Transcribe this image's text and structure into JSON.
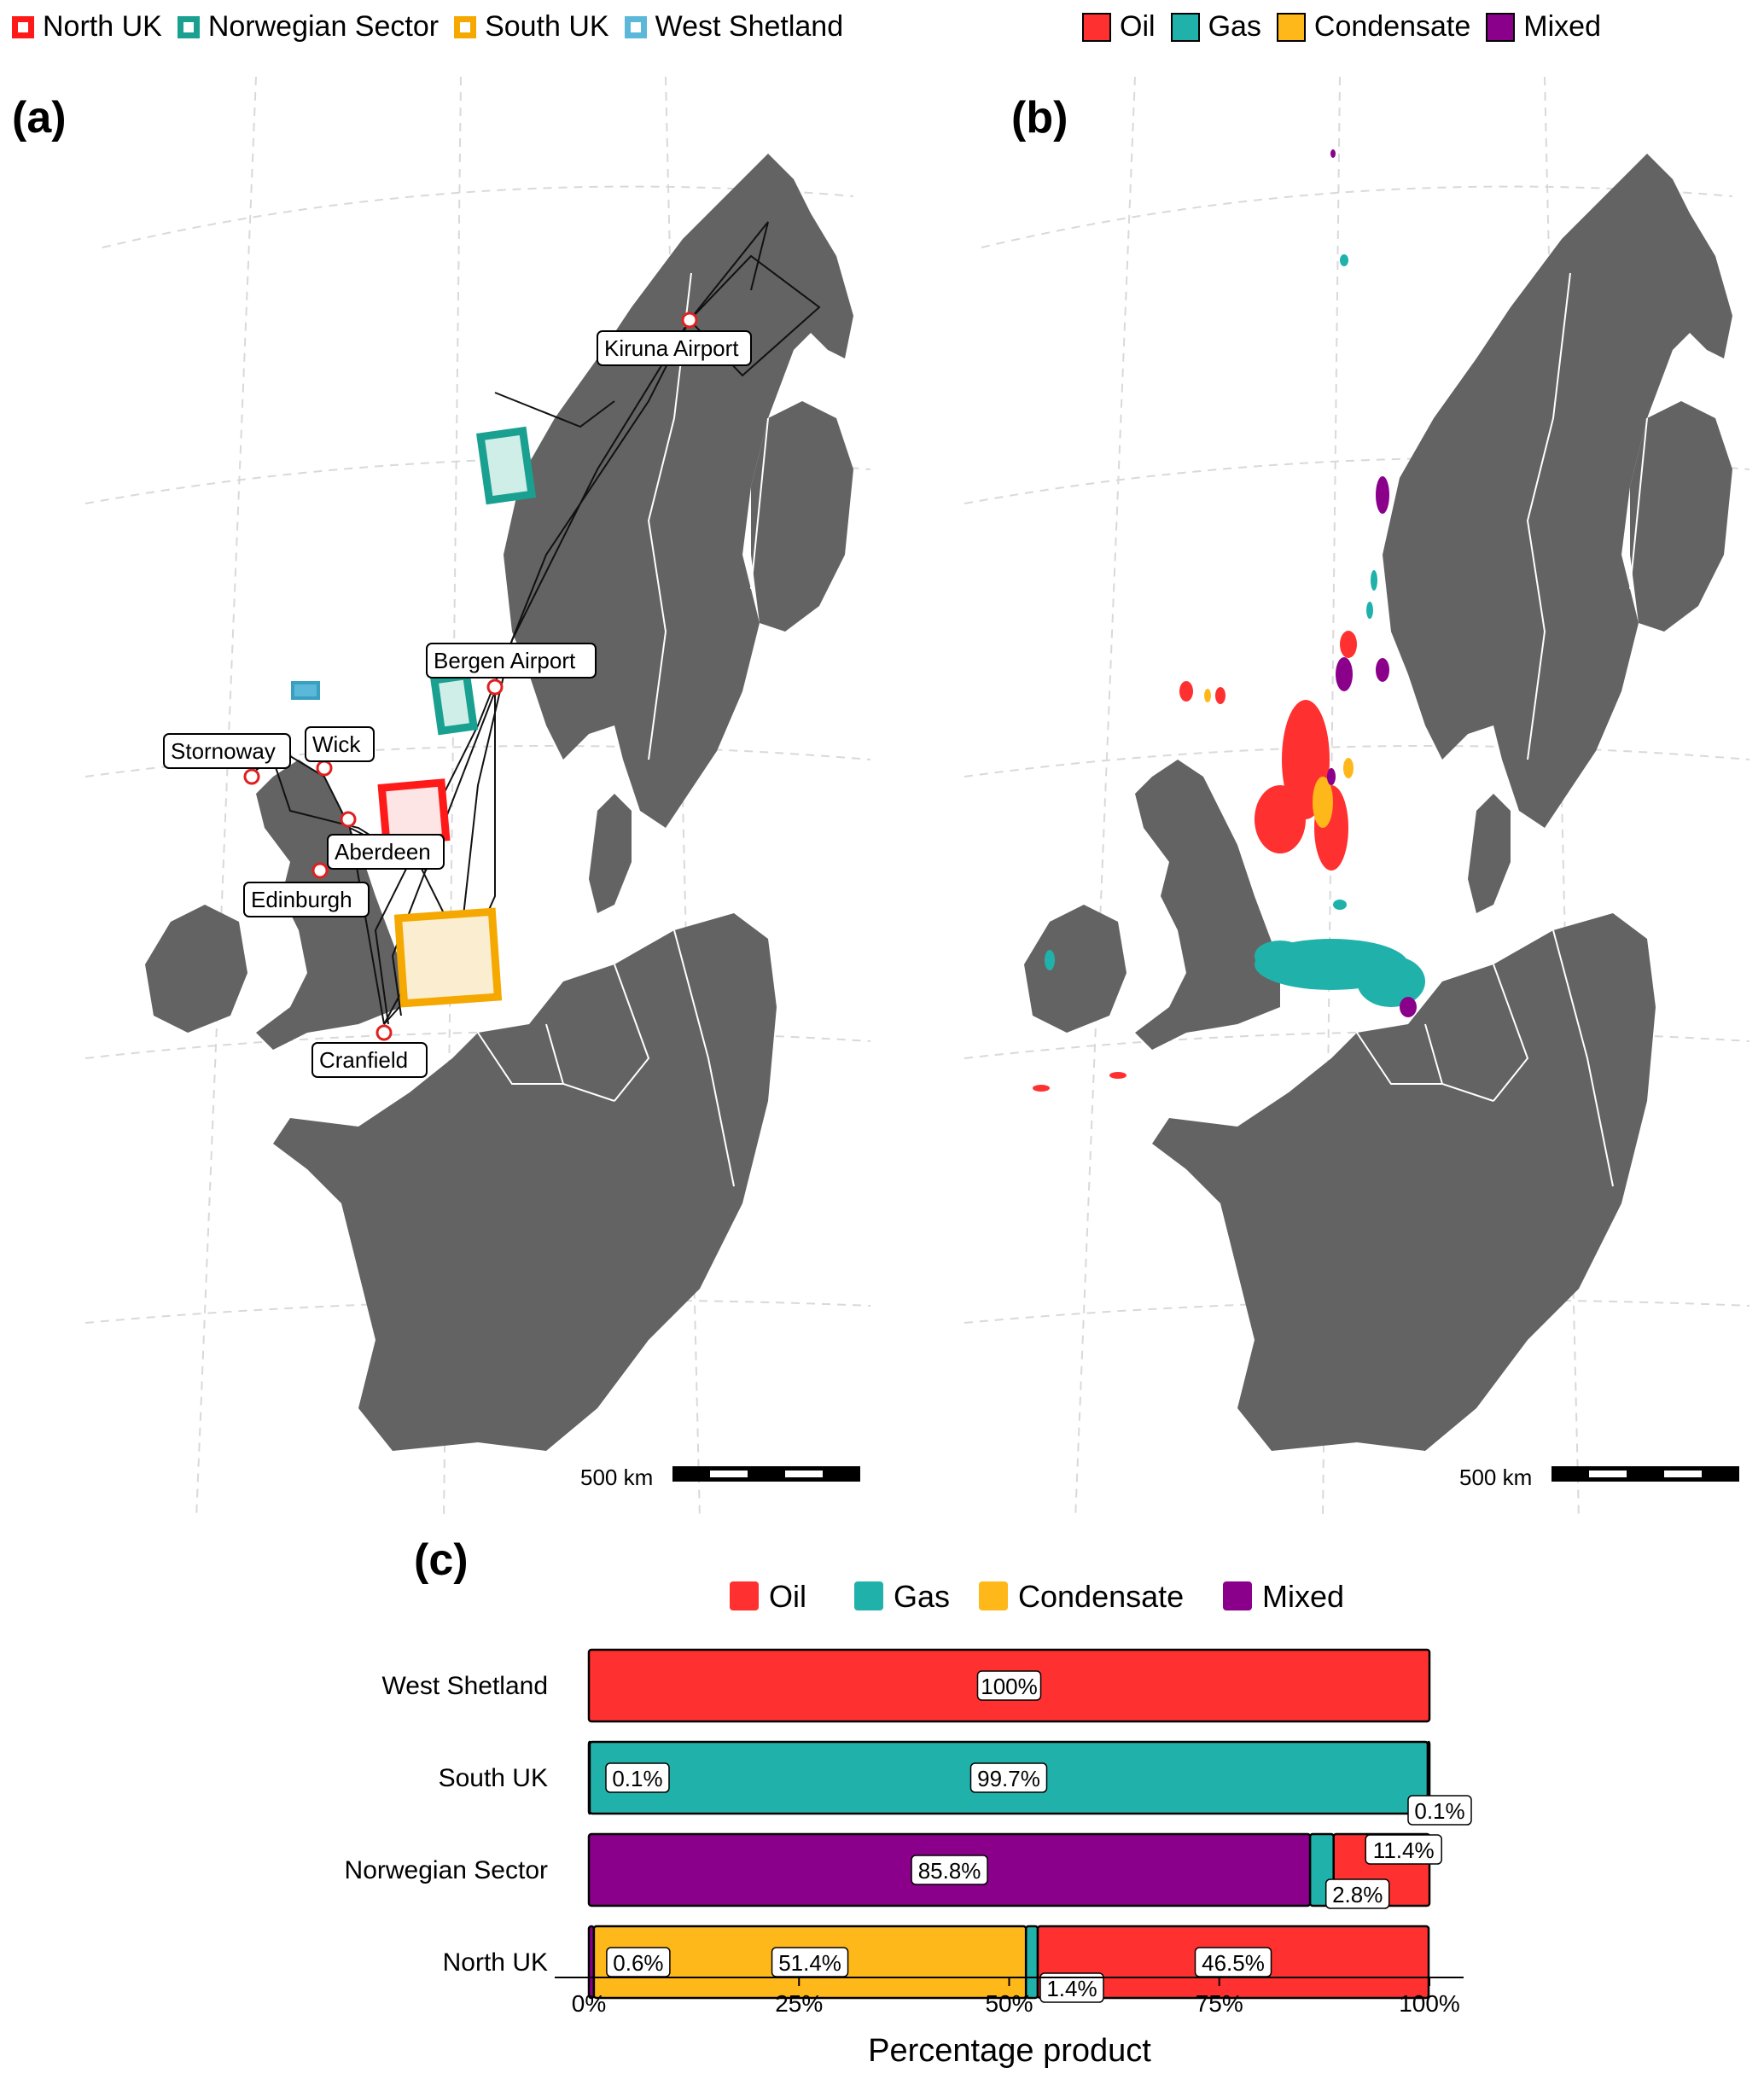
{
  "legend_a": {
    "items": [
      {
        "label": "North UK",
        "color": "#ff1a1a"
      },
      {
        "label": "Norwegian Sector",
        "color": "#1aa090"
      },
      {
        "label": "South UK",
        "color": "#f5a800"
      },
      {
        "label": "West Shetland",
        "color": "#5bb8d8"
      }
    ]
  },
  "legend_b": {
    "items": [
      {
        "label": "Oil",
        "color": "#ff3030"
      },
      {
        "label": "Gas",
        "color": "#20b2aa"
      },
      {
        "label": "Condensate",
        "color": "#ffb81a"
      },
      {
        "label": "Mixed",
        "color": "#8b008b"
      }
    ]
  },
  "panels": {
    "a": "(a)",
    "b": "(b)",
    "c": "(c)"
  },
  "map_a": {
    "cities": [
      "Kiruna Airport",
      "Bergen Airport",
      "Stornoway",
      "Wick",
      "Aberdeen",
      "Edinburgh",
      "Cranfield"
    ],
    "scale_label": "500 km"
  },
  "map_b": {
    "scale_label": "500 km"
  },
  "colors": {
    "land": "#636363",
    "border": "#ffffff",
    "grid": "#d9d9d9"
  },
  "chart_data": {
    "type": "bar",
    "orientation": "horizontal",
    "stacked": true,
    "categories": [
      "West Shetland",
      "South UK",
      "Norwegian Sector",
      "North UK"
    ],
    "legend": [
      "Oil",
      "Gas",
      "Condensate",
      "Mixed"
    ],
    "legend_placement": "top",
    "xlabel": "Percentage product",
    "xticks": [
      "0%",
      "25%",
      "50%",
      "75%",
      "100%"
    ],
    "xlim": [
      0,
      100
    ],
    "bars": [
      {
        "category": "West Shetland",
        "segments": [
          {
            "product": "Oil",
            "value": 100,
            "label": "100%"
          }
        ]
      },
      {
        "category": "South UK",
        "segments": [
          {
            "product": "Condensate",
            "value": 0.1,
            "label": "0.1%"
          },
          {
            "product": "Gas",
            "value": 99.7,
            "label": "99.7%"
          },
          {
            "product": "Oil",
            "value": 0.1,
            "label": "0.1%"
          }
        ]
      },
      {
        "category": "Norwegian Sector",
        "segments": [
          {
            "product": "Mixed",
            "value": 85.8,
            "label": "85.8%"
          },
          {
            "product": "Gas",
            "value": 2.8,
            "label": "2.8%"
          },
          {
            "product": "Oil",
            "value": 11.4,
            "label": "11.4%"
          }
        ]
      },
      {
        "category": "North UK",
        "segments": [
          {
            "product": "Mixed",
            "value": 0.6,
            "label": "0.6%"
          },
          {
            "product": "Condensate",
            "value": 51.4,
            "label": "51.4%"
          },
          {
            "product": "Gas",
            "value": 1.4,
            "label": "1.4%"
          },
          {
            "product": "Oil",
            "value": 46.5,
            "label": "46.5%"
          }
        ]
      }
    ]
  }
}
